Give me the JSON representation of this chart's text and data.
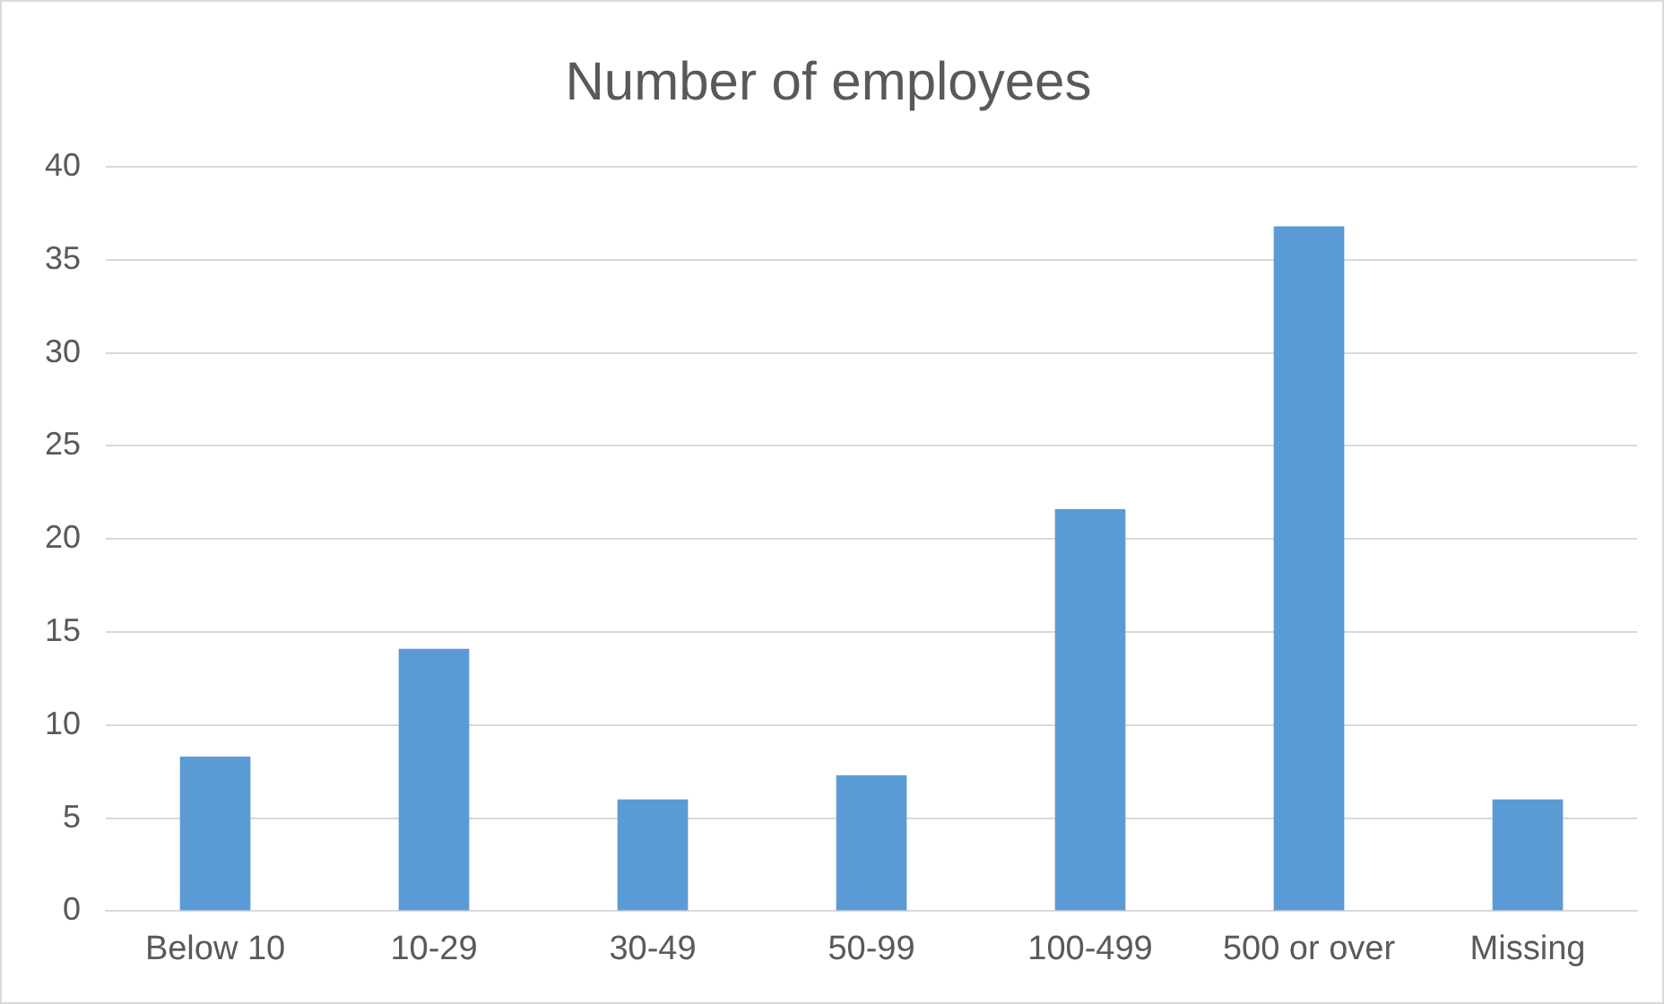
{
  "chart_data": {
    "type": "bar",
    "title": "Number of employees",
    "categories": [
      "Below 10",
      "10-29",
      "30-49",
      "50-99",
      "100-499",
      "500 or over",
      "Missing"
    ],
    "values": [
      8.3,
      14.1,
      6.0,
      7.3,
      21.6,
      36.8,
      6.0
    ],
    "color": "#5b9bd5",
    "ylim": [
      0,
      40
    ],
    "yticks": [
      0,
      5,
      10,
      15,
      20,
      25,
      30,
      35,
      40
    ],
    "grid": "y",
    "legend": false
  }
}
